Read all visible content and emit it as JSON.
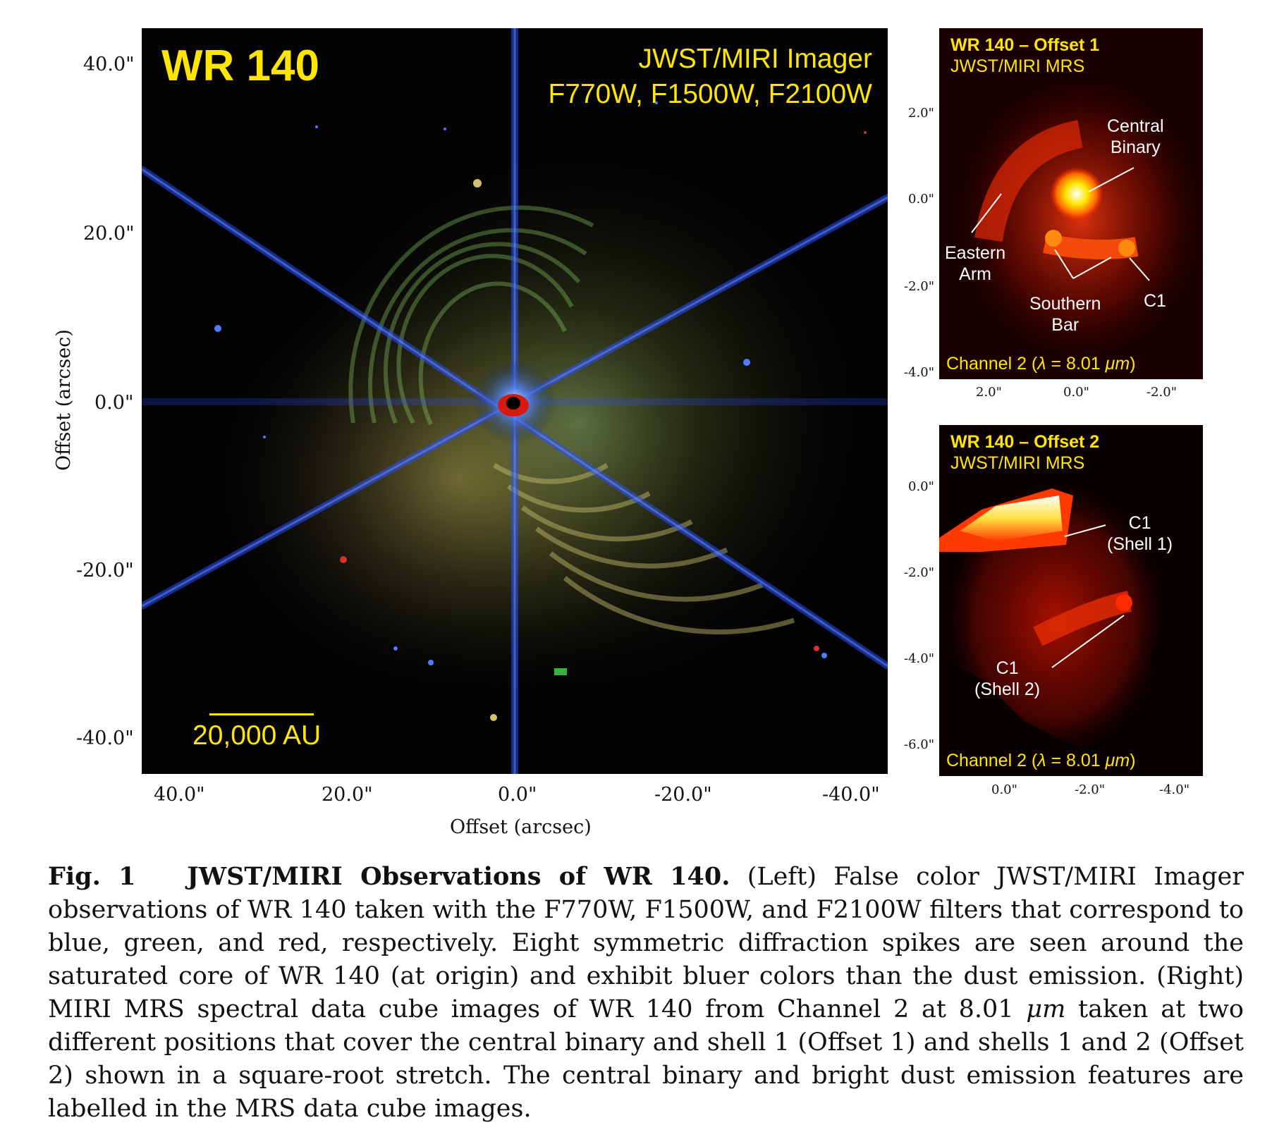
{
  "main_panel": {
    "title": "WR 140",
    "instrument_line1": "JWST/MIRI Imager",
    "instrument_line2": "F770W, F1500W, F2100W",
    "scalebar_label": "20,000 AU",
    "x_ticks": [
      "40.0\"",
      "20.0\"",
      "0.0\"",
      "-20.0\"",
      "-40.0\""
    ],
    "y_ticks": [
      "40.0\"",
      "20.0\"",
      "0.0\"",
      "-20.0\"",
      "-40.0\""
    ],
    "x_label": "Offset (arcsec)",
    "y_label": "Offset (arcsec)",
    "colors": {
      "spike": "#2f55ff",
      "dust_green": "#7fd45a",
      "dust_yellow": "#c9b55a",
      "label_yellow": "#ffe600"
    }
  },
  "offset1_panel": {
    "title": "WR 140 – Offset 1",
    "subtitle": "JWST/MIRI MRS",
    "channel_prefix": "Channel 2 (",
    "channel_lambda": "λ",
    "channel_suffix": " = 8.01 ",
    "channel_unit": "μm",
    "channel_close": ")",
    "labels": {
      "central_binary_1": "Central",
      "central_binary_2": "Binary",
      "eastern_arm_1": "Eastern",
      "eastern_arm_2": "Arm",
      "southern_bar_1": "Southern",
      "southern_bar_2": "Bar",
      "c1": "C1"
    },
    "y_ticks": [
      "2.0\"",
      "0.0\"",
      "-2.0\"",
      "-4.0\""
    ],
    "x_ticks": [
      "2.0\"",
      "0.0\"",
      "-2.0\""
    ]
  },
  "offset2_panel": {
    "title": "WR 140 – Offset 2",
    "subtitle": "JWST/MIRI MRS",
    "channel_prefix": "Channel 2 (",
    "channel_lambda": "λ",
    "channel_suffix": " = 8.01 ",
    "channel_unit": "μm",
    "channel_close": ")",
    "labels": {
      "c1_shell1_1": "C1",
      "c1_shell1_2": "(Shell 1)",
      "c1_shell2_1": "C1",
      "c1_shell2_2": "(Shell 2)"
    },
    "y_ticks": [
      "0.0\"",
      "-2.0\"",
      "-4.0\"",
      "-6.0\""
    ],
    "x_ticks": [
      "0.0\"",
      "-2.0\"",
      "-4.0\""
    ]
  },
  "caption": {
    "fig_label": "Fig. 1",
    "fig_title": "JWST/MIRI Observations of WR 140.",
    "body_1": " (Left) False color JWST/MIRI Imager observations of WR 140 taken with the F770W, F1500W, and F2100W filters that correspond to blue, green, and red, respectively.  Eight symmetric diffraction spikes are seen around the saturated core of WR 140 (at origin) and exhibit bluer colors than the dust emission. (Right) MIRI MRS spectral data cube images of WR 140 from Channel 2 at 8.01 ",
    "body_unit": "μm",
    "body_2": " taken at two different positions that cover the central binary and shell 1 (Offset 1) and shells 1 and 2 (Offset 2) shown in a square-root stretch.  The central binary and bright dust emission features are labelled in the MRS data cube images."
  }
}
